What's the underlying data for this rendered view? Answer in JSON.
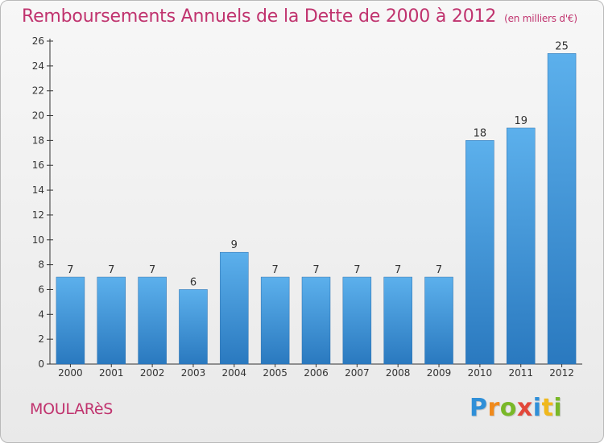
{
  "header": {
    "title": "Remboursements Annuels de la Dette de 2000 à 2012",
    "unit": "(en milliers d'€)"
  },
  "footer": {
    "town": "MOULARèS",
    "logo_letters": [
      {
        "ch": "P",
        "color": "#2f8fd8"
      },
      {
        "ch": "r",
        "color": "#f08a1c"
      },
      {
        "ch": "o",
        "color": "#79b828"
      },
      {
        "ch": "x",
        "color": "#e2473a"
      },
      {
        "ch": "i",
        "color": "#2f8fd8"
      },
      {
        "ch": "t",
        "color": "#f0b81c"
      },
      {
        "ch": "i",
        "color": "#79b828"
      }
    ]
  },
  "colors": {
    "bar_top": "#5cb0ec",
    "bar_bottom": "#2a79bf",
    "axis": "#333333",
    "accent": "#c0336e"
  },
  "chart_data": {
    "type": "bar",
    "categories": [
      "2000",
      "2001",
      "2002",
      "2003",
      "2004",
      "2005",
      "2006",
      "2007",
      "2008",
      "2009",
      "2010",
      "2011",
      "2012"
    ],
    "values": [
      7,
      7,
      7,
      6,
      9,
      7,
      7,
      7,
      7,
      7,
      18,
      19,
      25
    ],
    "ylim": [
      0,
      26
    ],
    "yticks": [
      0,
      2,
      4,
      6,
      8,
      10,
      12,
      14,
      16,
      18,
      20,
      22,
      24,
      26
    ],
    "grid": false,
    "data_labels": true
  }
}
